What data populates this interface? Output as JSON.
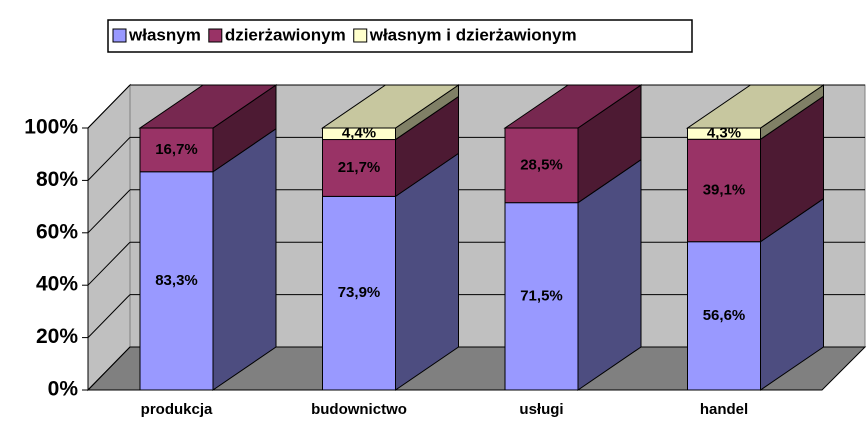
{
  "chart_data": {
    "type": "bar3d_stacked",
    "categories": [
      "produkcja",
      "budownictwo",
      "usługi",
      "handel"
    ],
    "series": [
      {
        "name": "własnym",
        "color": "#9999ff",
        "values": [
          83.3,
          73.9,
          71.5,
          56.6
        ],
        "value_labels": [
          "83,3%",
          "73,9%",
          "71,5%",
          "56,6%"
        ]
      },
      {
        "name": "dzierżawionym",
        "color": "#993366",
        "values": [
          16.7,
          21.7,
          28.5,
          39.1
        ],
        "value_labels": [
          "16,7%",
          "21,7%",
          "28,5%",
          "39,1%"
        ]
      },
      {
        "name": "własnym i dzierżawionym",
        "color": "#ffffcc",
        "values": [
          0,
          4.4,
          0,
          4.3
        ],
        "value_labels": [
          null,
          "4,4%",
          null,
          "4,3%"
        ]
      }
    ],
    "ylim": [
      0,
      100
    ],
    "yticks": [
      {
        "value": 0,
        "label": "0%"
      },
      {
        "value": 20,
        "label": "20%"
      },
      {
        "value": 40,
        "label": "40%"
      },
      {
        "value": 60,
        "label": "60%"
      },
      {
        "value": 80,
        "label": "80%"
      },
      {
        "value": 100,
        "label": "100%"
      }
    ],
    "grid": true,
    "legend": "top"
  }
}
